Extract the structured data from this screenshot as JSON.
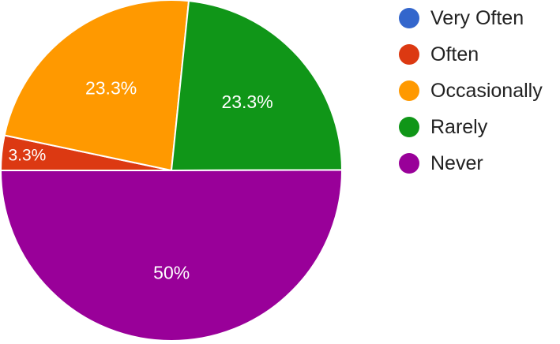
{
  "chart_data": {
    "type": "pie",
    "slices": [
      {
        "label": "Very Often",
        "value": 0,
        "color": "#3366cc",
        "label_text": ""
      },
      {
        "label": "Often",
        "value": 3.3,
        "color": "#dc3912",
        "label_text": "3.3%"
      },
      {
        "label": "Occasionally",
        "value": 23.3,
        "color": "#ff9900",
        "label_text": "23.3%"
      },
      {
        "label": "Rarely",
        "value": 23.3,
        "color": "#109618",
        "label_text": "23.3%"
      },
      {
        "label": "Never",
        "value": 50,
        "color": "#990099",
        "label_text": "50%"
      }
    ],
    "legend_position": "right",
    "start_direction": "left-horizontal, clockwise"
  }
}
